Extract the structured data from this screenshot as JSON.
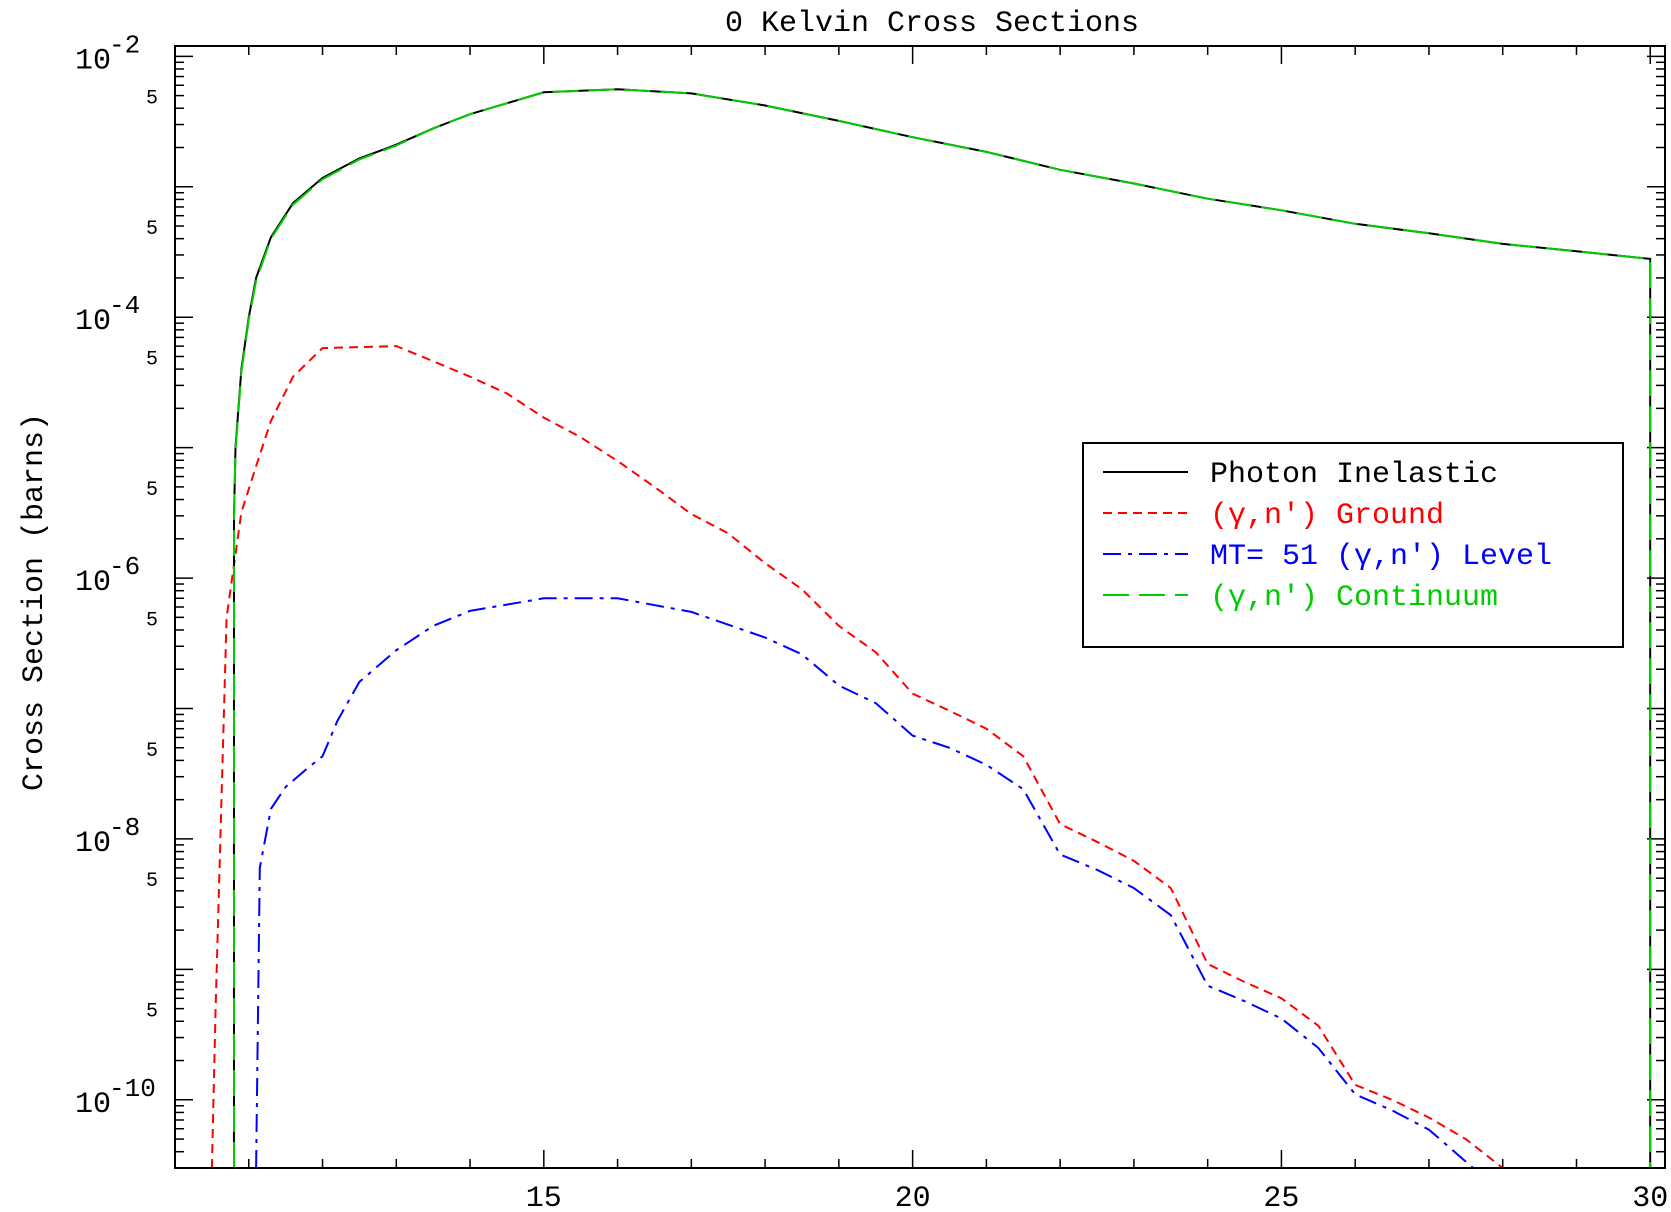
{
  "chart_data": {
    "type": "line",
    "title": "0 Kelvin Cross Sections",
    "xlabel": "",
    "ylabel": "Cross Section (barns)",
    "xlim": [
      10,
      30.2
    ],
    "ylim": [
      3e-11,
      0.012
    ],
    "yscale": "log",
    "x_ticks": [
      15,
      20,
      25,
      30
    ],
    "y_major_ticks": [
      {
        "value": 0.01,
        "base": "10",
        "exp": "-2"
      },
      {
        "value": 0.0001,
        "base": "10",
        "exp": "-4"
      },
      {
        "value": 1e-06,
        "base": "10",
        "exp": "-6"
      },
      {
        "value": 1e-08,
        "base": "10",
        "exp": "-8"
      },
      {
        "value": 1e-10,
        "base": "10",
        "exp": "-10"
      }
    ],
    "y_minor_labels": [
      {
        "value": 0.005,
        "label": "5"
      },
      {
        "value": 0.0005,
        "label": "5"
      },
      {
        "value": 5e-05,
        "label": "5"
      },
      {
        "value": 5e-06,
        "label": "5"
      },
      {
        "value": 5e-07,
        "label": "5"
      },
      {
        "value": 5e-08,
        "label": "5"
      },
      {
        "value": 5e-09,
        "label": "5"
      },
      {
        "value": 5e-10,
        "label": "5"
      }
    ],
    "grid": false,
    "legend_position": "right",
    "series": [
      {
        "name": "Photon Inelastic",
        "color": "#000000",
        "dash": "solid",
        "x": [
          10.8,
          10.8,
          10.82,
          10.9,
          11.0,
          11.1,
          11.3,
          11.6,
          12.0,
          12.5,
          13.0,
          13.5,
          14.0,
          15.0,
          16.0,
          17.0,
          18.0,
          19.0,
          20.0,
          21.0,
          22.0,
          23.0,
          24.0,
          25.0,
          26.0,
          27.0,
          28.0,
          29.0,
          30.0,
          30.0
        ],
        "y": [
          3e-11,
          3e-06,
          1e-05,
          4e-05,
          0.0001,
          0.0002,
          0.00041,
          0.00075,
          0.00117,
          0.00165,
          0.0021,
          0.0028,
          0.0036,
          0.0053,
          0.0056,
          0.0052,
          0.0042,
          0.0032,
          0.0024,
          0.00185,
          0.00135,
          0.00106,
          0.00081,
          0.00066,
          0.00052,
          0.00044,
          0.000365,
          0.00032,
          0.00028,
          3e-11
        ]
      },
      {
        "name": "(γ,n′) Ground",
        "color": "#ff0000",
        "dash": "dashed",
        "x": [
          10.5,
          10.55,
          10.7,
          10.9,
          11.1,
          11.3,
          11.6,
          12.0,
          13.0,
          13.5,
          14.0,
          14.5,
          15.0,
          15.5,
          16.0,
          16.5,
          17.0,
          17.5,
          18.0,
          18.5,
          19.0,
          19.5,
          20.0,
          20.5,
          21.0,
          21.5,
          22.0,
          22.5,
          23.0,
          23.5,
          24.0,
          24.5,
          25.0,
          25.5,
          26.0,
          26.5,
          27.0,
          27.5,
          28.0
        ],
        "y": [
          3e-11,
          5e-10,
          5e-07,
          3.2e-06,
          7.2e-06,
          1.6e-05,
          3.5e-05,
          5.8e-05,
          6e-05,
          4.6e-05,
          3.5e-05,
          2.6e-05,
          1.7e-05,
          1.2e-05,
          7.9e-06,
          5e-06,
          3.1e-06,
          2.2e-06,
          1.3e-06,
          8.2e-07,
          4.3e-07,
          2.7e-07,
          1.3e-07,
          9.6e-08,
          7e-08,
          4.3e-08,
          1.3e-08,
          9.5e-09,
          6.8e-09,
          4.2e-09,
          1.1e-09,
          8e-10,
          6e-10,
          3.7e-10,
          1.3e-10,
          1e-10,
          7.3e-11,
          5e-11,
          3e-11
        ]
      },
      {
        "name": "MT= 51 (γ,n′) Level",
        "color": "#0000ff",
        "dash": "dashdot",
        "x": [
          11.1,
          11.15,
          11.3,
          11.5,
          11.8,
          12.0,
          12.2,
          12.5,
          13.0,
          13.5,
          14.0,
          15.0,
          16.0,
          17.0,
          18.0,
          18.5,
          19.0,
          19.5,
          20.0,
          20.5,
          21.0,
          21.5,
          22.0,
          22.5,
          23.0,
          23.5,
          24.0,
          24.5,
          25.0,
          25.5,
          26.0,
          26.5,
          27.0,
          27.6
        ],
        "y": [
          3e-11,
          6e-09,
          1.7e-08,
          2.5e-08,
          3.5e-08,
          4.3e-08,
          8e-08,
          1.6e-07,
          2.8e-07,
          4.3e-07,
          5.6e-07,
          7e-07,
          7e-07,
          5.5e-07,
          3.5e-07,
          2.6e-07,
          1.5e-07,
          1.1e-07,
          6.2e-08,
          5e-08,
          3.7e-08,
          2.4e-08,
          7.6e-09,
          5.8e-09,
          4.2e-09,
          2.6e-09,
          7.5e-10,
          5.7e-10,
          4.2e-10,
          2.5e-10,
          1.1e-10,
          8.3e-11,
          5.9e-11,
          3e-11
        ]
      },
      {
        "name": "(γ,n′) Continuum",
        "color": "#00cc00",
        "dash": "longdash",
        "x": [
          10.8,
          10.8,
          10.82,
          10.9,
          11.0,
          11.1,
          11.3,
          11.6,
          12.0,
          12.5,
          13.0,
          13.5,
          14.0,
          15.0,
          16.0,
          17.0,
          18.0,
          19.0,
          20.0,
          21.0,
          22.0,
          23.0,
          24.0,
          25.0,
          26.0,
          27.0,
          28.0,
          29.0,
          30.0,
          30.0
        ],
        "y": [
          3e-11,
          2.8e-06,
          9.5e-06,
          3.8e-05,
          9.6e-05,
          0.00019,
          0.0004,
          0.00073,
          0.00114,
          0.00162,
          0.00207,
          0.0028,
          0.0036,
          0.0053,
          0.0056,
          0.0052,
          0.0042,
          0.0032,
          0.0024,
          0.00185,
          0.00135,
          0.00106,
          0.00081,
          0.00066,
          0.00052,
          0.00044,
          0.000365,
          0.00032,
          0.00028,
          3e-11
        ]
      }
    ]
  }
}
